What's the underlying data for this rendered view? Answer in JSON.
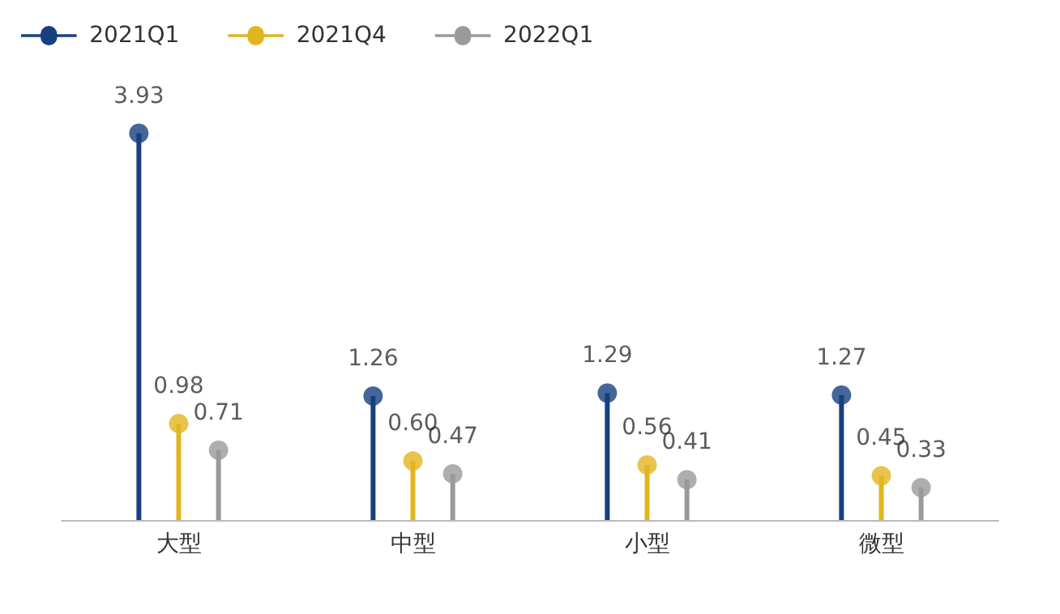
{
  "chart_data": {
    "type": "lollipop",
    "categories": [
      "大型",
      "中型",
      "小型",
      "微型"
    ],
    "marker": "circle",
    "grid": false,
    "legend": "top left",
    "series": [
      {
        "name": "2021Q1",
        "color": "#17407e",
        "values": [
          3.93,
          1.26,
          1.29,
          1.27
        ],
        "value_labels": [
          "3.93",
          "1.26",
          "1.29",
          "1.27"
        ]
      },
      {
        "name": "2021Q4",
        "color": "#e2b520",
        "values": [
          0.98,
          0.6,
          0.56,
          0.45
        ],
        "value_labels": [
          "0.98",
          "0.60",
          "0.56",
          "0.45"
        ]
      },
      {
        "name": "2022Q1",
        "color": "#9a9a9a",
        "values": [
          0.71,
          0.47,
          0.41,
          0.33
        ],
        "value_labels": [
          "0.71",
          "0.47",
          "0.41",
          "0.33"
        ]
      }
    ]
  }
}
